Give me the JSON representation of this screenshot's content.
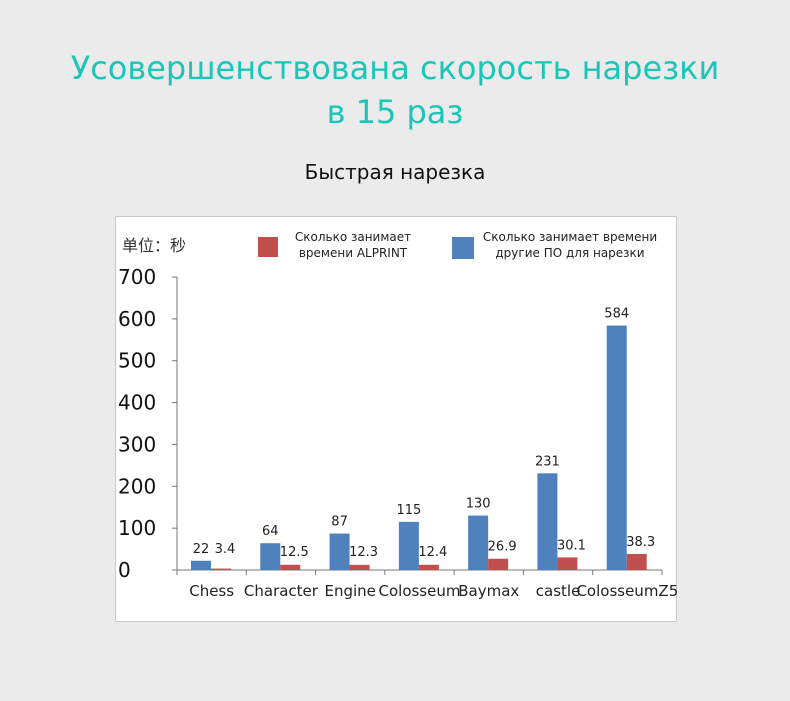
{
  "header": {
    "title_line1": "Усовершенствована скорость нарезки",
    "title_line2": "в 15 раз",
    "subtitle": "Быстрая нарезка"
  },
  "colors": {
    "title": "#19c6b8",
    "alprint": "#c0504d",
    "other": "#4f81bd"
  },
  "chart_data": {
    "type": "bar",
    "unit_label": "单位：秒",
    "categories": [
      "Chess",
      "Character",
      "Engine",
      "Colosseum",
      "Baymax",
      "castle",
      "ColosseumZ5"
    ],
    "series": [
      {
        "key": "other",
        "name": "Сколько занимает времени другие ПО для нарезки",
        "legend_lines": [
          "Сколько занимает времени",
          "другие ПО для нарезки"
        ],
        "color": "#4f81bd",
        "values": [
          22,
          64,
          87,
          115,
          130,
          231,
          584
        ]
      },
      {
        "key": "alprint",
        "name": "Сколько занимает времени ALPRINT",
        "legend_lines": [
          "Сколько занимает",
          "времени ALPRINT"
        ],
        "color": "#c0504d",
        "values": [
          3.4,
          12.5,
          12.3,
          12.4,
          26.9,
          30.1,
          38.3
        ]
      }
    ],
    "yticks": [
      0,
      100,
      200,
      300,
      400,
      500,
      600,
      700
    ],
    "ylim": [
      0,
      700
    ],
    "grid": false,
    "legend_position": "top"
  }
}
